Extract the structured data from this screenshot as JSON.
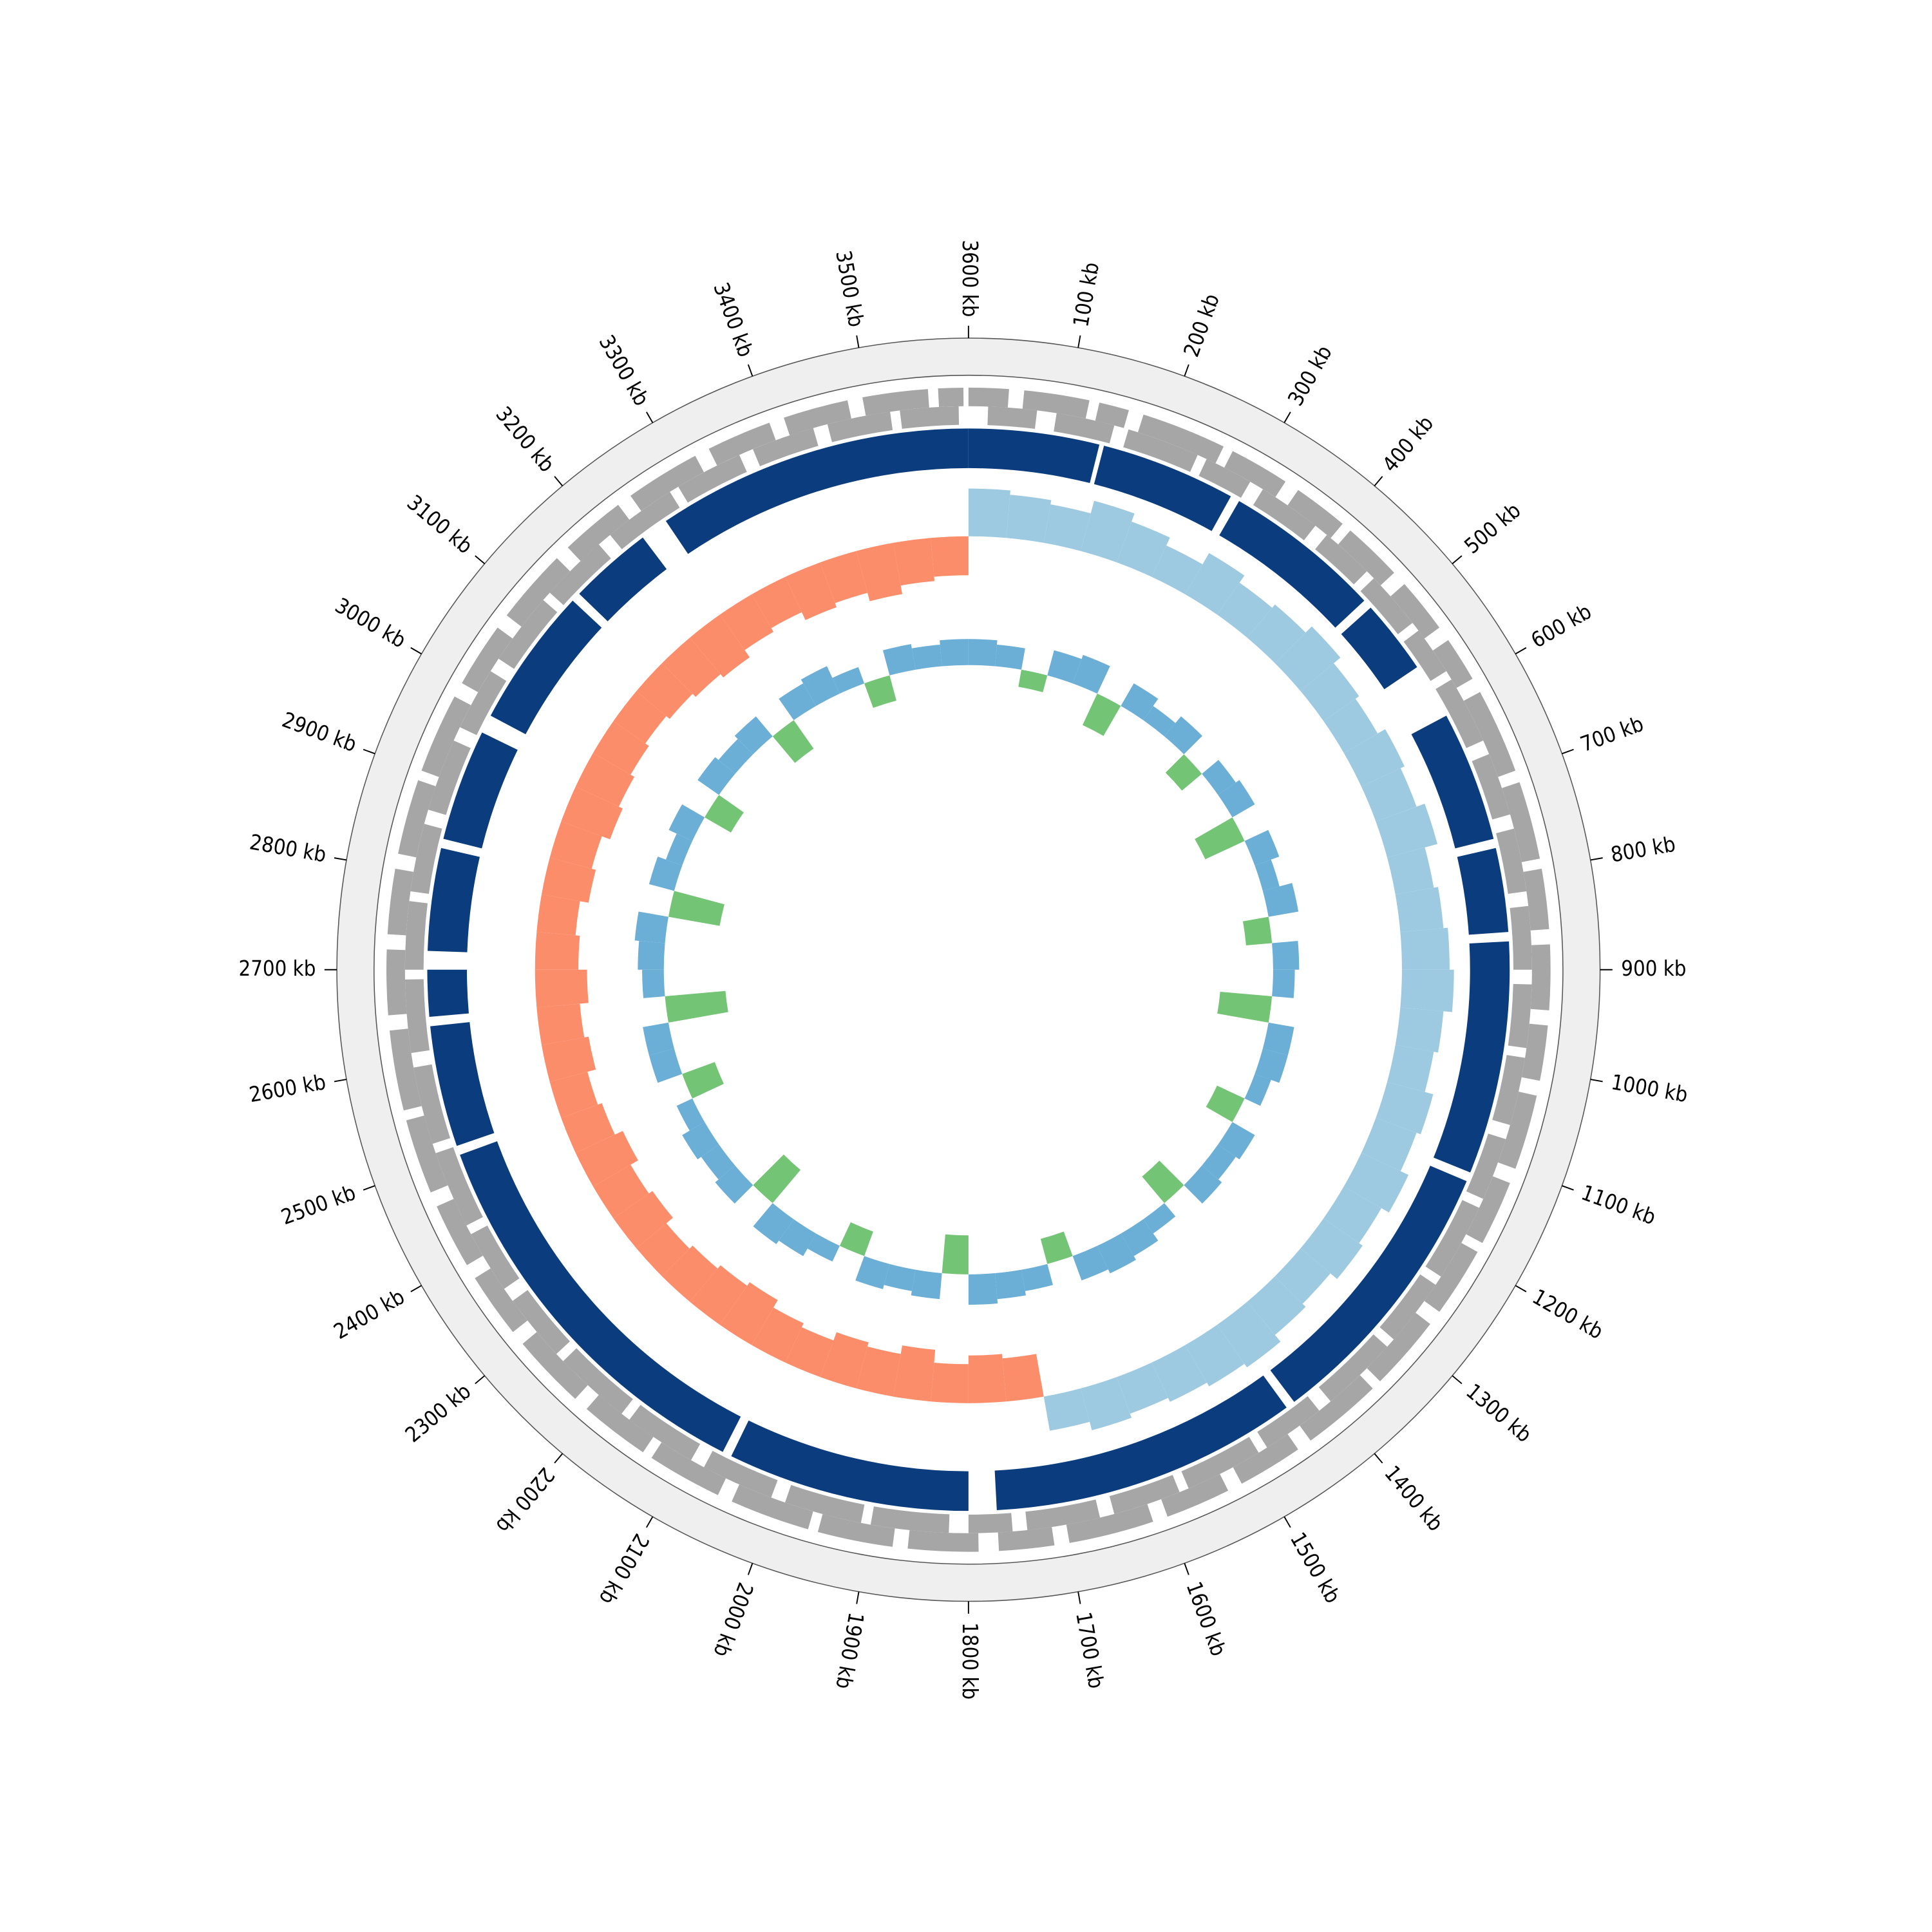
{
  "chart_data": {
    "type": "circular-genome",
    "xlim": [
      0,
      3600
    ],
    "xticks": [
      {
        "value": 100,
        "label": "100 kb"
      },
      {
        "value": 200,
        "label": "200 kb"
      },
      {
        "value": 300,
        "label": "300 kb"
      },
      {
        "value": 400,
        "label": "400 kb"
      },
      {
        "value": 500,
        "label": "500 kb"
      },
      {
        "value": 600,
        "label": "600 kb"
      },
      {
        "value": 700,
        "label": "700 kb"
      },
      {
        "value": 800,
        "label": "800 kb"
      },
      {
        "value": 900,
        "label": "900 kb"
      },
      {
        "value": 1000,
        "label": "1000 kb"
      },
      {
        "value": 1100,
        "label": "1100 kb"
      },
      {
        "value": 1200,
        "label": "1200 kb"
      },
      {
        "value": 1300,
        "label": "1300 kb"
      },
      {
        "value": 1400,
        "label": "1400 kb"
      },
      {
        "value": 1500,
        "label": "1500 kb"
      },
      {
        "value": 1600,
        "label": "1600 kb"
      },
      {
        "value": 1700,
        "label": "1700 kb"
      },
      {
        "value": 1800,
        "label": "1800 kb"
      },
      {
        "value": 1900,
        "label": "1900 kb"
      },
      {
        "value": 2000,
        "label": "2000 kb"
      },
      {
        "value": 2100,
        "label": "2100 kb"
      },
      {
        "value": 2200,
        "label": "2200 kb"
      },
      {
        "value": 2300,
        "label": "2300 kb"
      },
      {
        "value": 2400,
        "label": "2400 kb"
      },
      {
        "value": 2500,
        "label": "2500 kb"
      },
      {
        "value": 2600,
        "label": "2600 kb"
      },
      {
        "value": 2700,
        "label": "2700 kb"
      },
      {
        "value": 2800,
        "label": "2800 kb"
      },
      {
        "value": 2900,
        "label": "2900 kb"
      },
      {
        "value": 3000,
        "label": "3000 kb"
      },
      {
        "value": 3100,
        "label": "3100 kb"
      },
      {
        "value": 3200,
        "label": "3200 kb"
      },
      {
        "value": 3300,
        "label": "3300 kb"
      },
      {
        "value": 3400,
        "label": "3400 kb"
      },
      {
        "value": 3500,
        "label": "3500 kb"
      },
      {
        "value": 3600,
        "label": "3600 kb"
      }
    ],
    "x": [
      0,
      50,
      100,
      150,
      200,
      250,
      300,
      350,
      400,
      450,
      500,
      550,
      600,
      650,
      700,
      750,
      800,
      850,
      900,
      950,
      1000,
      1050,
      1100,
      1150,
      1200,
      1250,
      1300,
      1350,
      1400,
      1450,
      1500,
      1550,
      1600,
      1650,
      1700,
      1750,
      1800,
      1850,
      1900,
      1950,
      2000,
      2050,
      2100,
      2150,
      2200,
      2250,
      2300,
      2350,
      2400,
      2450,
      2500,
      2550,
      2600,
      2650,
      2700,
      2750,
      2800,
      2850,
      2900,
      2950,
      3000,
      3050,
      3100,
      3150,
      3200,
      3250,
      3300,
      3350,
      3400,
      3450,
      3500,
      3550
    ],
    "tracks": [
      {
        "type": "arcs",
        "color": "#a6a6a6",
        "arcs": [
          [
            0,
            40
          ],
          [
            55,
            120
          ],
          [
            130,
            160
          ],
          [
            175,
            260
          ],
          [
            270,
            330
          ],
          [
            345,
            400
          ],
          [
            410,
            470
          ],
          [
            485,
            540
          ],
          [
            555,
            600
          ],
          [
            615,
            700
          ],
          [
            712,
            790
          ],
          [
            800,
            860
          ],
          [
            875,
            940
          ],
          [
            955,
            1010
          ],
          [
            1025,
            1100
          ],
          [
            1115,
            1180
          ],
          [
            1190,
            1260
          ],
          [
            1275,
            1350
          ],
          [
            1360,
            1440
          ],
          [
            1455,
            1520
          ],
          [
            1535,
            1600
          ],
          [
            1615,
            1700
          ],
          [
            1715,
            1770
          ],
          [
            1790,
            1860
          ],
          [
            1875,
            1950
          ],
          [
            1960,
            2040
          ],
          [
            2055,
            2130
          ],
          [
            2140,
            2210
          ],
          [
            2225,
            2300
          ],
          [
            2315,
            2380
          ],
          [
            2395,
            2460
          ],
          [
            2475,
            2550
          ],
          [
            2560,
            2640
          ],
          [
            2655,
            2720
          ],
          [
            2735,
            2800
          ],
          [
            2815,
            2890
          ],
          [
            2900,
            2980
          ],
          [
            2995,
            3060
          ],
          [
            3075,
            3150
          ],
          [
            3165,
            3230
          ],
          [
            3245,
            3320
          ],
          [
            3335,
            3400
          ],
          [
            3415,
            3480
          ],
          [
            3495,
            3560
          ],
          [
            3570,
            3595
          ]
        ]
      },
      {
        "type": "arcs",
        "color": "#a6a6a6",
        "arcs": [
          [
            20,
            70
          ],
          [
            90,
            150
          ],
          [
            165,
            240
          ],
          [
            250,
            300
          ],
          [
            315,
            380
          ],
          [
            395,
            450
          ],
          [
            460,
            520
          ],
          [
            530,
            580
          ],
          [
            590,
            660
          ],
          [
            675,
            740
          ],
          [
            755,
            820
          ],
          [
            835,
            900
          ],
          [
            915,
            980
          ],
          [
            990,
            1060
          ],
          [
            1075,
            1140
          ],
          [
            1150,
            1230
          ],
          [
            1240,
            1310
          ],
          [
            1320,
            1400
          ],
          [
            1415,
            1480
          ],
          [
            1490,
            1570
          ],
          [
            1580,
            1650
          ],
          [
            1665,
            1740
          ],
          [
            1755,
            1800
          ],
          [
            1820,
            1900
          ],
          [
            1910,
            1990
          ],
          [
            2005,
            2080
          ],
          [
            2095,
            2170
          ],
          [
            2180,
            2260
          ],
          [
            2270,
            2340
          ],
          [
            2355,
            2420
          ],
          [
            2430,
            2510
          ],
          [
            2520,
            2600
          ],
          [
            2615,
            2690
          ],
          [
            2700,
            2770
          ],
          [
            2780,
            2850
          ],
          [
            2865,
            2940
          ],
          [
            2955,
            3020
          ],
          [
            3035,
            3110
          ],
          [
            3120,
            3190
          ],
          [
            3205,
            3280
          ],
          [
            3290,
            3360
          ],
          [
            3375,
            3440
          ],
          [
            3455,
            3520
          ],
          [
            3530,
            3590
          ]
        ]
      },
      {
        "type": "arcs",
        "color": "#0b3c7e",
        "arcs": [
          [
            0,
            140
          ],
          [
            145,
            290
          ],
          [
            300,
            470
          ],
          [
            480,
            560
          ],
          [
            620,
            760
          ],
          [
            770,
            860
          ],
          [
            870,
            1120
          ],
          [
            1130,
            1430
          ],
          [
            1440,
            1770
          ],
          [
            1800,
            2060
          ],
          [
            2070,
            2500
          ],
          [
            2510,
            2640
          ],
          [
            2650,
            2700
          ],
          [
            2720,
            2830
          ],
          [
            2840,
            2960
          ],
          [
            2980,
            3130
          ],
          [
            3140,
            3230
          ],
          [
            3260,
            3600
          ]
        ]
      },
      {
        "type": "bars",
        "colors": [
          "#9ecae1",
          "#fc8d6a"
        ],
        "ylim": [
          -1,
          1
        ],
        "values": [
          0.55,
          0.5,
          0.45,
          0.6,
          0.5,
          0.4,
          0.55,
          0.45,
          0.5,
          0.6,
          0.5,
          0.45,
          0.55,
          0.5,
          0.6,
          0.45,
          0.5,
          0.55,
          0.6,
          0.5,
          0.45,
          0.55,
          0.5,
          0.6,
          0.5,
          0.55,
          0.45,
          0.5,
          0.6,
          0.55,
          0.5,
          0.45,
          0.5,
          0.4,
          -0.5,
          -0.55,
          -0.45,
          -0.6,
          -0.5,
          -0.55,
          -0.45,
          -0.5,
          -0.6,
          -0.55,
          -0.5,
          -0.45,
          -0.55,
          -0.5,
          -0.6,
          -0.5,
          -0.45,
          -0.55,
          -0.5,
          -0.6,
          -0.5,
          -0.45,
          -0.55,
          -0.5,
          -0.6,
          -0.55,
          -0.5,
          -0.45,
          -0.5,
          -0.55,
          -0.6,
          -0.5,
          -0.45,
          -0.55,
          -0.5,
          -0.6,
          -0.5,
          -0.45
        ]
      },
      {
        "type": "bars",
        "colors": [
          "#6baed6",
          "#74c476"
        ],
        "ylim": [
          -1,
          1
        ],
        "values": [
          0.3,
          0.25,
          -0.2,
          0.3,
          0.35,
          -0.4,
          0.3,
          0.2,
          0.3,
          -0.3,
          0.25,
          0.3,
          -0.5,
          0.3,
          0.2,
          0.35,
          -0.3,
          0.3,
          0.25,
          -0.6,
          0.3,
          0.3,
          0.2,
          -0.35,
          0.3,
          0.25,
          0.3,
          -0.4,
          0.2,
          0.3,
          0.35,
          0.3,
          -0.3,
          0.25,
          0.3,
          0.35,
          -0.45,
          0.3,
          0.25,
          0.3,
          -0.3,
          0.2,
          0.3,
          0.35,
          -0.5,
          0.3,
          0.25,
          0.3,
          0.2,
          -0.4,
          0.3,
          0.3,
          -0.7,
          0.25,
          0.3,
          0.35,
          -0.6,
          0.3,
          0.2,
          0.3,
          -0.35,
          0.3,
          0.25,
          0.3,
          -0.4,
          0.3,
          0.35,
          0.2,
          -0.3,
          0.3,
          0.25,
          0.3
        ]
      }
    ]
  }
}
